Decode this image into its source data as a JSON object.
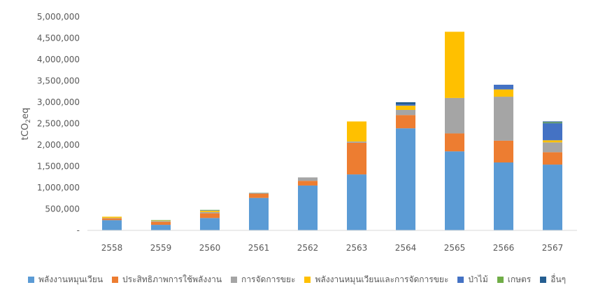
{
  "chart_data": {
    "type": "bar",
    "stacked": true,
    "categories": [
      "2558",
      "2559",
      "2560",
      "2561",
      "2562",
      "2563",
      "2564",
      "2565",
      "2566",
      "2567"
    ],
    "ylabel": "tCO2eq",
    "ylim": [
      0,
      5000000
    ],
    "yticks": [
      0,
      500000,
      1000000,
      1500000,
      2000000,
      2500000,
      3000000,
      3500000,
      4000000,
      4500000,
      5000000
    ],
    "ytick_labels": [
      "-",
      "500,000",
      "1,000,000",
      "1,500,000",
      "2,000,000",
      "2,500,000",
      "3,000,000",
      "3,500,000",
      "4,000,000",
      "4,500,000",
      "5,000,000"
    ],
    "grid": false,
    "legend_position": "bottom",
    "series": [
      {
        "name": "พลังงานหมุนเวียน",
        "color": "#5B9BD5",
        "values": [
          240000,
          130000,
          290000,
          760000,
          1050000,
          1310000,
          2390000,
          1850000,
          1590000,
          1540000
        ]
      },
      {
        "name": "ประสิทธิภาพการใช้พลังงาน",
        "color": "#ED7D31",
        "values": [
          40000,
          70000,
          110000,
          100000,
          110000,
          740000,
          310000,
          420000,
          510000,
          290000
        ]
      },
      {
        "name": "การจัดการขยะ",
        "color": "#A5A5A5",
        "values": [
          10000,
          20000,
          30000,
          10000,
          80000,
          30000,
          120000,
          830000,
          1030000,
          230000
        ]
      },
      {
        "name": "พลังงานหมุนเวียนและการจัดการขยะ",
        "color": "#FFC000",
        "values": [
          30000,
          10000,
          30000,
          0,
          0,
          470000,
          100000,
          1550000,
          170000,
          50000
        ]
      },
      {
        "name": "ป่าไม้",
        "color": "#4472C4",
        "values": [
          0,
          0,
          10000,
          5000,
          0,
          0,
          30000,
          0,
          110000,
          400000
        ]
      },
      {
        "name": "เกษตร",
        "color": "#70AD47",
        "values": [
          0,
          10000,
          10000,
          5000,
          0,
          0,
          0,
          0,
          0,
          20000
        ]
      },
      {
        "name": "อื่นๆ",
        "color": "#255E91",
        "values": [
          0,
          0,
          0,
          0,
          0,
          0,
          50000,
          0,
          0,
          20000
        ]
      }
    ]
  }
}
